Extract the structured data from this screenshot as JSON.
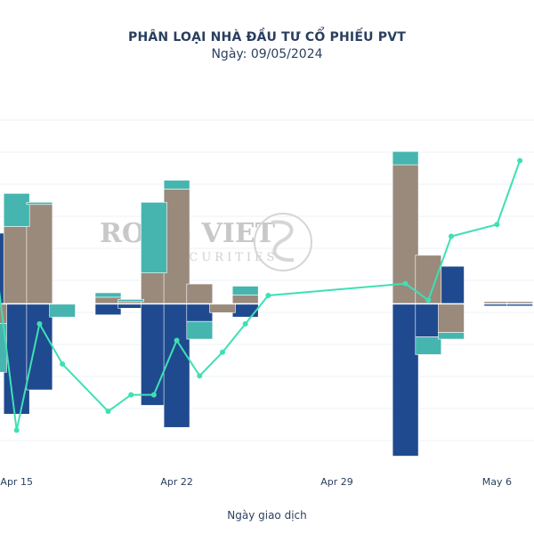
{
  "chart_data": {
    "type": "bar",
    "title": "PHÂN LOẠI NHÀ ĐẦU TƯ CỔ PHIẾU PVT",
    "subtitle": "Ngày: 09/05/2024",
    "xlabel": "Ngày giao dịch",
    "watermark": {
      "line1": "RONG VIET",
      "line2": "SECURITIES"
    },
    "x_tick_labels": [
      {
        "label": "Apr 15",
        "day": 15
      },
      {
        "label": "Apr 22",
        "day": 22
      },
      {
        "label": "Apr 29",
        "day": 29
      },
      {
        "label": "May 6",
        "day": 36
      }
    ],
    "days": [
      14,
      15,
      16,
      17,
      19,
      20,
      21,
      22,
      23,
      24,
      25,
      26,
      32,
      33,
      34,
      36,
      37
    ],
    "ylim": [
      -0.68,
      0.82
    ],
    "barmode": "relative",
    "series": [
      {
        "color": "#1f4a8f",
        "values": [
          0.32,
          -0.5,
          -0.39,
          0,
          -0.05,
          -0.02,
          -0.46,
          -0.56,
          -0.08,
          0,
          -0.06,
          0,
          -0.69,
          -0.15,
          0.17,
          -0.01,
          -0.01
        ]
      },
      {
        "color": "#9a8a7c",
        "values": [
          -0.09,
          0.35,
          0.45,
          0,
          0.03,
          0.01,
          0.14,
          0.52,
          0.09,
          -0.04,
          0.04,
          0,
          0.63,
          0.22,
          -0.13,
          0.01,
          0.01
        ]
      },
      {
        "color": "#46b5af",
        "values": [
          -0.22,
          0.15,
          0.01,
          -0.06,
          0.02,
          0.01,
          0.32,
          0.04,
          -0.08,
          0,
          0.04,
          0,
          0.06,
          -0.08,
          -0.03,
          0,
          0
        ]
      }
    ],
    "line": {
      "color": "#3ee0b4",
      "values": [
        -0.12,
        -0.89,
        -0.44,
        -0.61,
        -0.81,
        -0.74,
        -0.74,
        -0.51,
        -0.66,
        -0.56,
        -0.44,
        -0.32,
        -0.27,
        -0.34,
        -0.07,
        -0.02,
        0.25
      ],
      "ylim": [
        -0.99,
        0.41
      ]
    }
  }
}
